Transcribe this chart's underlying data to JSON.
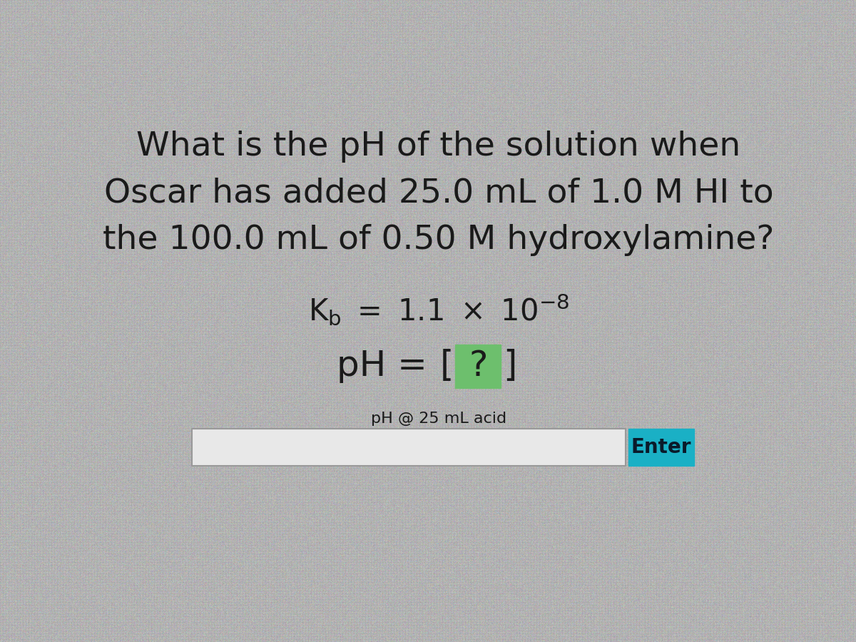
{
  "background_color": "#b5b5b5",
  "title_line1": "What is the pH of the solution when",
  "title_line2": "Oscar has added 25.0 mL of 1.0 M HI to",
  "title_line3": "the 100.0 mL of 0.50 M hydroxylamine?",
  "input_label": "pH @ 25 mL acid",
  "enter_text": "Enter",
  "title_fontsize": 34,
  "kb_fontsize": 30,
  "ph_fontsize": 36,
  "input_label_fontsize": 16,
  "enter_fontsize": 20,
  "text_color": "#1a1a1a",
  "green_box_color": "#6dbf6d",
  "enter_button_color": "#1ab0c5",
  "enter_text_color": "#0a1a2a",
  "input_box_color": "#e8e8e8",
  "input_border_color": "#999999"
}
